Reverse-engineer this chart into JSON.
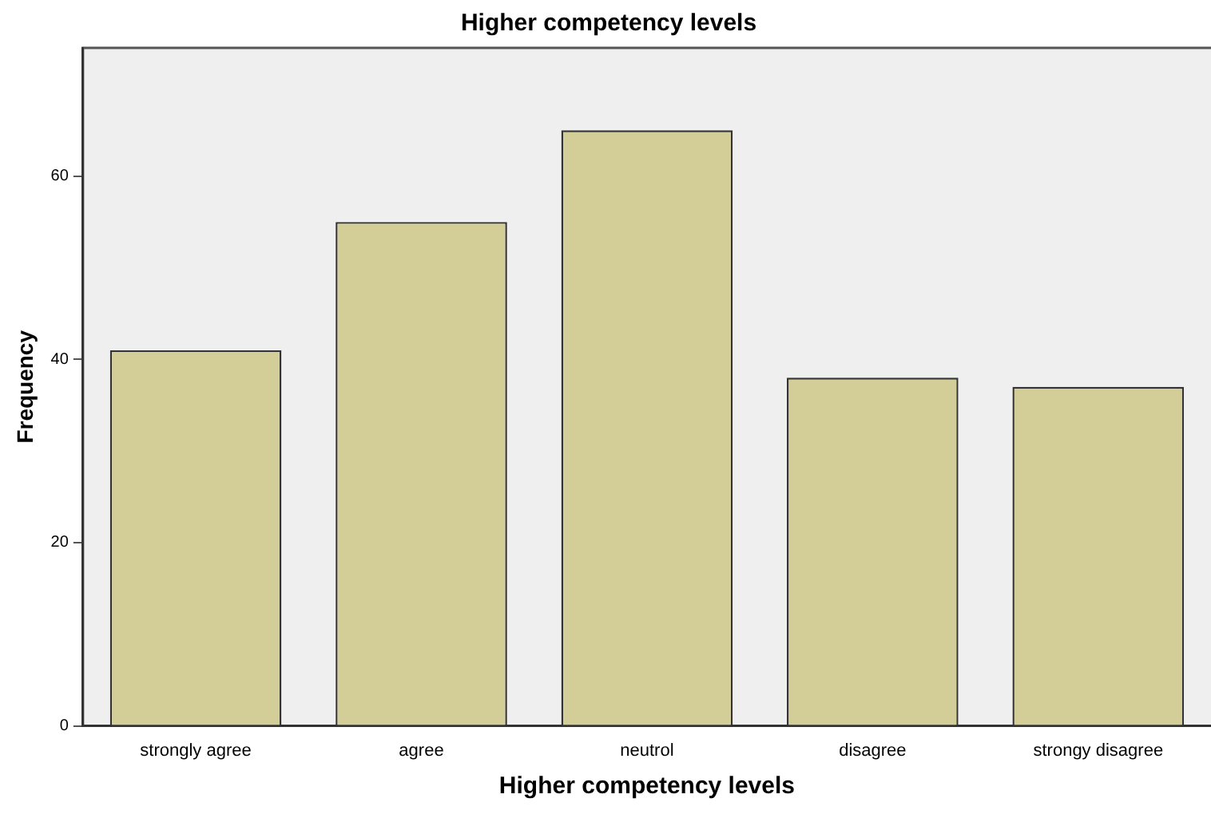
{
  "chart_data": {
    "type": "bar",
    "title": "Higher competency levels",
    "xlabel": "Higher competency levels",
    "ylabel": "Frequency",
    "categories": [
      "strongly agree",
      "agree",
      "neutrol",
      "disagree",
      "strongy disagree"
    ],
    "values": [
      41,
      55,
      65,
      38,
      37
    ],
    "color": "#d3ce98",
    "ylim": [
      0,
      74
    ],
    "yticks": [
      0,
      20,
      40,
      60
    ],
    "grid": false,
    "legend": false
  }
}
